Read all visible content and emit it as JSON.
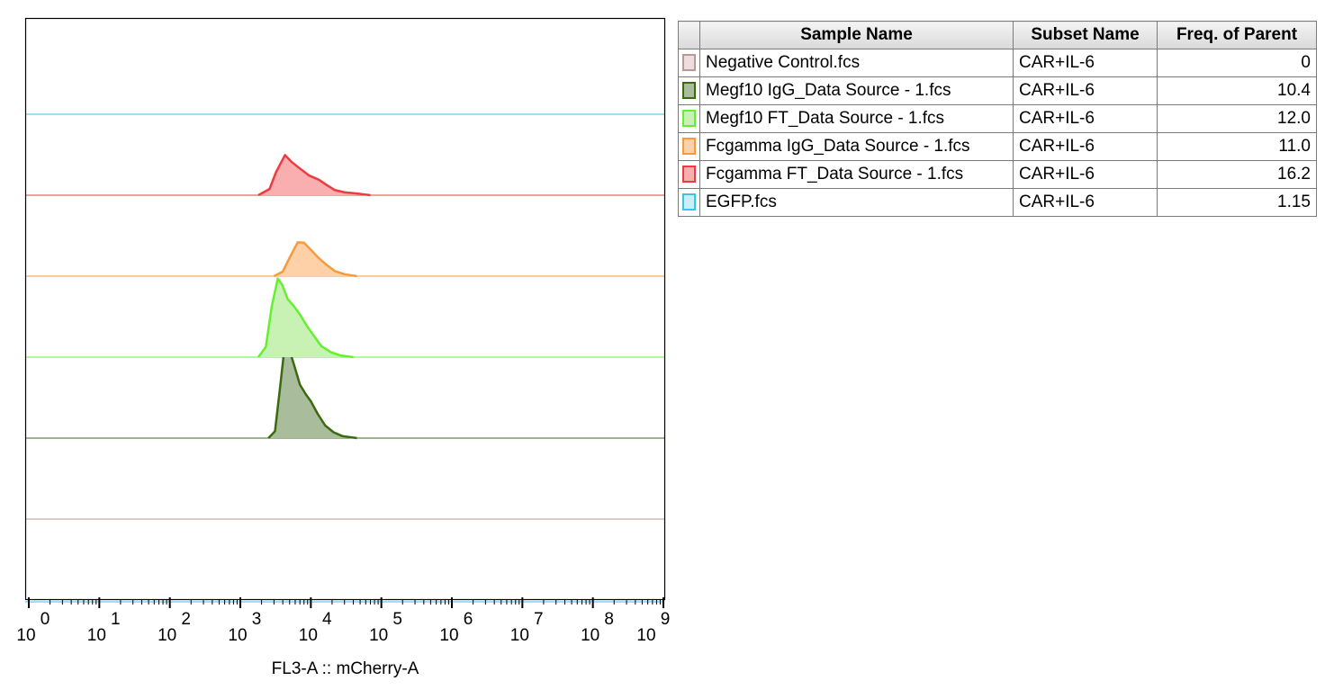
{
  "chart_data": {
    "type": "area",
    "subtype": "offset-histogram",
    "xlabel": "FL3-A :: mCherry-A",
    "ylabel": "",
    "x_scale": "log",
    "xlim": [
      1,
      1000000000
    ],
    "x_ticks": [
      {
        "base": "10",
        "exp": "0"
      },
      {
        "base": "10",
        "exp": "1"
      },
      {
        "base": "10",
        "exp": "2"
      },
      {
        "base": "10",
        "exp": "3"
      },
      {
        "base": "10",
        "exp": "4"
      },
      {
        "base": "10",
        "exp": "5"
      },
      {
        "base": "10",
        "exp": "6"
      },
      {
        "base": "10",
        "exp": "7"
      },
      {
        "base": "10",
        "exp": "8"
      },
      {
        "base": "10",
        "exp": "9"
      }
    ],
    "legend_placement": "right",
    "series": [
      {
        "name": "Negative Control.fcs",
        "subset": "CAR+IL-6",
        "freq": "0",
        "fill": "#efdcdc",
        "stroke": "#b59a9a",
        "peak_height": 0,
        "points": []
      },
      {
        "name": "Megf10 IgG_Data Source - 1.fcs",
        "subset": "CAR+IL-6",
        "freq": "10.4",
        "fill": "#a9bd9c",
        "stroke": "#3a6a0e",
        "peak_height": 1.0,
        "points": [
          [
            2500,
            0
          ],
          [
            3100,
            0.07
          ],
          [
            3700,
            0.55
          ],
          [
            4300,
            0.98
          ],
          [
            4900,
            0.92
          ],
          [
            5800,
            0.75
          ],
          [
            7000,
            0.55
          ],
          [
            8500,
            0.45
          ],
          [
            10000,
            0.38
          ],
          [
            12500,
            0.25
          ],
          [
            16000,
            0.13
          ],
          [
            21000,
            0.06
          ],
          [
            28000,
            0.02
          ],
          [
            45000,
            0
          ]
        ]
      },
      {
        "name": "Megf10 FT_Data Source - 1.fcs",
        "subset": "CAR+IL-6",
        "freq": "12.0",
        "fill": "#c8f2b4",
        "stroke": "#64f030",
        "peak_height": 0.88,
        "points": [
          [
            1800,
            0
          ],
          [
            2300,
            0.12
          ],
          [
            2800,
            0.6
          ],
          [
            3400,
            0.92
          ],
          [
            3900,
            0.85
          ],
          [
            4700,
            0.68
          ],
          [
            5700,
            0.6
          ],
          [
            7000,
            0.5
          ],
          [
            8700,
            0.37
          ],
          [
            11000,
            0.25
          ],
          [
            14000,
            0.13
          ],
          [
            19000,
            0.06
          ],
          [
            26000,
            0.02
          ],
          [
            40000,
            0
          ]
        ]
      },
      {
        "name": "Fcgamma IgG_Data Source - 1.fcs",
        "subset": "CAR+IL-6",
        "freq": "11.0",
        "fill": "#ffd1a8",
        "stroke": "#f79a3e",
        "peak_height": 0.4,
        "points": [
          [
            3000,
            0
          ],
          [
            4000,
            0.12
          ],
          [
            5000,
            0.48
          ],
          [
            6500,
            0.87
          ],
          [
            8000,
            0.86
          ],
          [
            10000,
            0.68
          ],
          [
            13000,
            0.46
          ],
          [
            17000,
            0.28
          ],
          [
            22000,
            0.13
          ],
          [
            30000,
            0.05
          ],
          [
            45000,
            0
          ]
        ]
      },
      {
        "name": "Fcgamma FT_Data Source - 1.fcs",
        "subset": "CAR+IL-6",
        "freq": "16.2",
        "fill": "#f9aeb0",
        "stroke": "#ee3b42",
        "peak_height": 0.43,
        "points": [
          [
            1800,
            0
          ],
          [
            2600,
            0.15
          ],
          [
            3200,
            0.55
          ],
          [
            4300,
            0.96
          ],
          [
            5300,
            0.8
          ],
          [
            7000,
            0.64
          ],
          [
            9500,
            0.47
          ],
          [
            13000,
            0.37
          ],
          [
            17000,
            0.24
          ],
          [
            22000,
            0.12
          ],
          [
            30000,
            0.07
          ],
          [
            45000,
            0.04
          ],
          [
            70000,
            0
          ]
        ]
      },
      {
        "name": "EGFP.fcs",
        "subset": "CAR+IL-6",
        "freq": "1.15",
        "fill": "#c8f0fb",
        "stroke": "#3cc2ec",
        "peak_height": 0,
        "points": []
      }
    ]
  },
  "table": {
    "headers": [
      "Sample Name",
      "Subset Name",
      "Freq. of Parent"
    ]
  }
}
